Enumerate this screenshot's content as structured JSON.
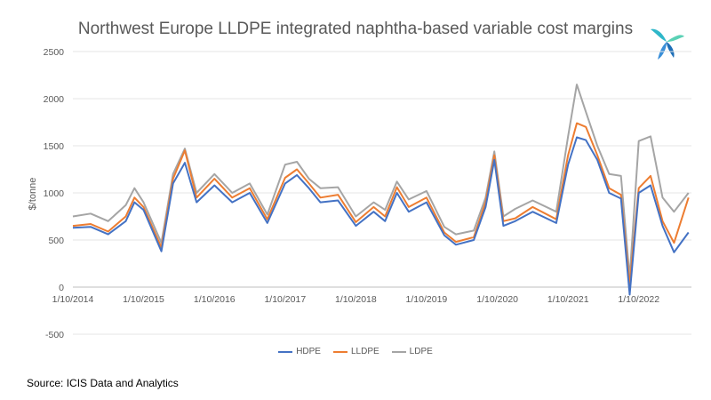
{
  "chart_data": {
    "type": "line",
    "title": "Northwest Europe LLDPE integrated naphtha-based variable cost margins",
    "xlabel": "",
    "ylabel": "$/tonne",
    "ylim": [
      -500,
      2500
    ],
    "yticks": [
      2500,
      2000,
      1500,
      1000,
      500,
      0,
      -500
    ],
    "x_start": "2014-10-01",
    "x_end": "2023-06-30",
    "xtick_labels": [
      "1/10/2014",
      "1/10/2015",
      "1/10/2016",
      "1/10/2017",
      "1/10/2018",
      "1/10/2019",
      "1/10/2020",
      "1/10/2021",
      "1/10/2022"
    ],
    "xtick_dates": [
      "2014-10-01",
      "2015-10-01",
      "2016-10-01",
      "2017-10-01",
      "2018-10-01",
      "2019-10-01",
      "2020-10-01",
      "2021-10-01",
      "2022-10-01"
    ],
    "grid": true,
    "legend": "bottom",
    "x": [
      "2014-10-01",
      "2015-01-01",
      "2015-04-01",
      "2015-07-01",
      "2015-08-15",
      "2015-10-01",
      "2016-01-01",
      "2016-03-01",
      "2016-05-01",
      "2016-07-01",
      "2016-10-01",
      "2017-01-01",
      "2017-04-01",
      "2017-07-01",
      "2017-10-01",
      "2017-12-01",
      "2018-02-01",
      "2018-04-01",
      "2018-07-01",
      "2018-10-01",
      "2019-01-01",
      "2019-03-01",
      "2019-05-01",
      "2019-07-01",
      "2019-10-01",
      "2020-01-01",
      "2020-03-01",
      "2020-06-01",
      "2020-08-01",
      "2020-09-15",
      "2020-11-01",
      "2021-01-01",
      "2021-04-01",
      "2021-08-01",
      "2021-10-01",
      "2021-11-15",
      "2022-01-01",
      "2022-03-01",
      "2022-05-01",
      "2022-07-01",
      "2022-08-15",
      "2022-10-01",
      "2022-12-01",
      "2023-02-01",
      "2023-04-01",
      "2023-06-15"
    ],
    "series": [
      {
        "name": "HDPE",
        "color": "#4472C4",
        "values": [
          630,
          640,
          560,
          700,
          900,
          820,
          380,
          1100,
          1320,
          900,
          1080,
          900,
          1000,
          680,
          1100,
          1190,
          1050,
          900,
          920,
          650,
          800,
          700,
          1000,
          800,
          900,
          550,
          450,
          500,
          850,
          1350,
          650,
          700,
          800,
          680,
          1300,
          1590,
          1560,
          1350,
          1000,
          940,
          -80,
          1000,
          1080,
          650,
          370,
          580
        ]
      },
      {
        "name": "LLDPE",
        "color": "#ED7D31",
        "values": [
          650,
          670,
          590,
          750,
          950,
          850,
          420,
          1150,
          1450,
          950,
          1150,
          950,
          1050,
          720,
          1160,
          1250,
          1100,
          950,
          980,
          690,
          850,
          750,
          1060,
          850,
          950,
          580,
          480,
          530,
          900,
          1400,
          700,
          730,
          850,
          720,
          1400,
          1740,
          1700,
          1400,
          1050,
          980,
          20,
          1050,
          1180,
          700,
          470,
          950
        ]
      },
      {
        "name": "LDPE",
        "color": "#A5A5A5",
        "values": [
          750,
          780,
          700,
          870,
          1050,
          900,
          470,
          1200,
          1470,
          1000,
          1200,
          1000,
          1100,
          770,
          1300,
          1330,
          1150,
          1050,
          1060,
          750,
          900,
          820,
          1120,
          930,
          1020,
          640,
          560,
          600,
          950,
          1440,
          750,
          830,
          920,
          800,
          1600,
          2150,
          1860,
          1500,
          1200,
          1180,
          100,
          1550,
          1600,
          950,
          800,
          1000
        ]
      }
    ]
  },
  "source": "Source: ICIS Data and Analytics"
}
